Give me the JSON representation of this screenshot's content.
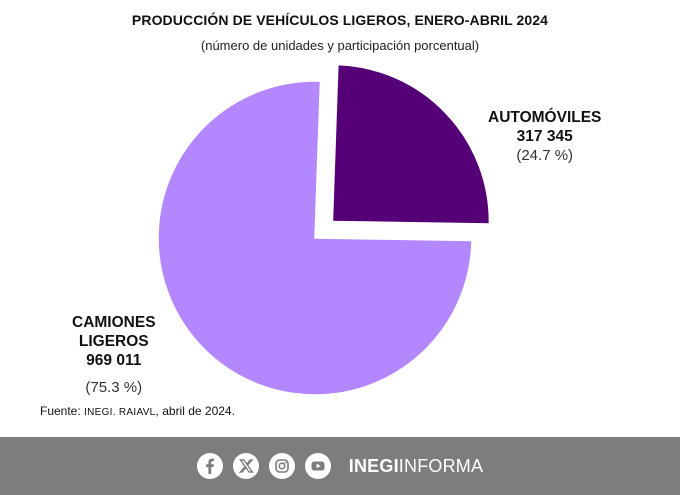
{
  "chart_data": {
    "type": "pie",
    "title": "PRODUCCIÓN DE VEHÍCULOS LIGEROS, ENERO-ABRIL 2024",
    "subtitle": "(número de unidades y participación porcentual)",
    "slices": [
      {
        "name_lines": [
          "AUTOMÓVILES"
        ],
        "value_label": "317 345",
        "value": 317345,
        "percent": 24.7,
        "percent_label": "(24.7 %)",
        "color": "#560077",
        "exploded": true
      },
      {
        "name_lines": [
          "CAMIONES",
          "LIGEROS"
        ],
        "value_label": "969  011",
        "value": 969011,
        "percent": 75.3,
        "percent_label": "(75.3 %)",
        "color": "#b388ff",
        "exploded": false
      }
    ],
    "source_prefix": "Fuente: ",
    "source_org": "INEGI. RAIAVL",
    "source_suffix": ", abril de 2024."
  },
  "footer": {
    "icons": [
      "facebook-icon",
      "x-icon",
      "instagram-icon",
      "youtube-icon"
    ],
    "brand_bold": "INEGI",
    "brand_regular": "INFORMA",
    "background": "#7d7d7d"
  }
}
